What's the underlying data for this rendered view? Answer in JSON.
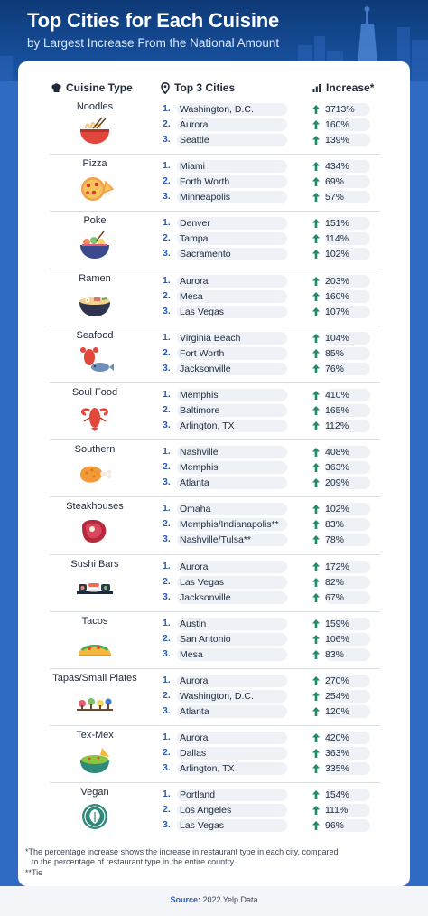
{
  "title": "Top Cities for Each Cuisine",
  "subtitle": "by Largest Increase From the National Amount",
  "columns": {
    "cuisine": "Cuisine Type",
    "cities": "Top 3 Cities",
    "increase": "Increase*"
  },
  "colors": {
    "navy": "#0e3a77",
    "blue": "#2a5bb5",
    "teal_arrow": "#1f8a6e",
    "pill": "#eef1f5"
  },
  "groups": [
    {
      "cuisine": "Noodles",
      "icon": "noodle-bowl-icon",
      "rows": [
        {
          "rank": "1.",
          "city": "Washington, D.C.",
          "pct": "3713%"
        },
        {
          "rank": "2.",
          "city": "Aurora",
          "pct": "160%"
        },
        {
          "rank": "3.",
          "city": "Seattle",
          "pct": "139%"
        }
      ]
    },
    {
      "cuisine": "Pizza",
      "icon": "pizza-icon",
      "rows": [
        {
          "rank": "1.",
          "city": "Miami",
          "pct": "434%"
        },
        {
          "rank": "2.",
          "city": "Forth Worth",
          "pct": "69%"
        },
        {
          "rank": "3.",
          "city": "Minneapolis",
          "pct": "57%"
        }
      ]
    },
    {
      "cuisine": "Poke",
      "icon": "poke-bowl-icon",
      "rows": [
        {
          "rank": "1.",
          "city": "Denver",
          "pct": "151%"
        },
        {
          "rank": "2.",
          "city": "Tampa",
          "pct": "114%"
        },
        {
          "rank": "3.",
          "city": "Sacramento",
          "pct": "102%"
        }
      ]
    },
    {
      "cuisine": "Ramen",
      "icon": "ramen-bowl-icon",
      "rows": [
        {
          "rank": "1.",
          "city": "Aurora",
          "pct": "203%"
        },
        {
          "rank": "2.",
          "city": "Mesa",
          "pct": "160%"
        },
        {
          "rank": "3.",
          "city": "Las Vegas",
          "pct": "107%"
        }
      ]
    },
    {
      "cuisine": "Seafood",
      "icon": "lobster-fish-icon",
      "rows": [
        {
          "rank": "1.",
          "city": "Virginia Beach",
          "pct": "104%"
        },
        {
          "rank": "2.",
          "city": "Fort Worth",
          "pct": "85%"
        },
        {
          "rank": "3.",
          "city": "Jacksonville",
          "pct": "76%"
        }
      ]
    },
    {
      "cuisine": "Soul Food",
      "icon": "crawfish-icon",
      "rows": [
        {
          "rank": "1.",
          "city": "Memphis",
          "pct": "410%"
        },
        {
          "rank": "2.",
          "city": "Baltimore",
          "pct": "165%"
        },
        {
          "rank": "3.",
          "city": "Arlington, TX",
          "pct": "112%"
        }
      ]
    },
    {
      "cuisine": "Southern",
      "icon": "fried-chicken-icon",
      "rows": [
        {
          "rank": "1.",
          "city": "Nashville",
          "pct": "408%"
        },
        {
          "rank": "2.",
          "city": "Memphis",
          "pct": "363%"
        },
        {
          "rank": "3.",
          "city": "Atlanta",
          "pct": "209%"
        }
      ]
    },
    {
      "cuisine": "Steakhouses",
      "icon": "steak-icon",
      "rows": [
        {
          "rank": "1.",
          "city": "Omaha",
          "pct": "102%"
        },
        {
          "rank": "2.",
          "city": "Memphis/Indianapolis**",
          "pct": "83%"
        },
        {
          "rank": "3.",
          "city": "Nashville/Tulsa**",
          "pct": "78%"
        }
      ]
    },
    {
      "cuisine": "Sushi Bars",
      "icon": "sushi-icon",
      "rows": [
        {
          "rank": "1.",
          "city": "Aurora",
          "pct": "172%"
        },
        {
          "rank": "2.",
          "city": "Las Vegas",
          "pct": "82%"
        },
        {
          "rank": "3.",
          "city": "Jacksonville",
          "pct": "67%"
        }
      ]
    },
    {
      "cuisine": "Tacos",
      "icon": "taco-icon",
      "rows": [
        {
          "rank": "1.",
          "city": "Austin",
          "pct": "159%"
        },
        {
          "rank": "2.",
          "city": "San Antonio",
          "pct": "106%"
        },
        {
          "rank": "3.",
          "city": "Mesa",
          "pct": "83%"
        }
      ]
    },
    {
      "cuisine": "Tapas/Small Plates",
      "icon": "tapas-icon",
      "rows": [
        {
          "rank": "1.",
          "city": "Aurora",
          "pct": "270%"
        },
        {
          "rank": "2.",
          "city": "Washington, D.C.",
          "pct": "254%"
        },
        {
          "rank": "3.",
          "city": "Atlanta",
          "pct": "120%"
        }
      ]
    },
    {
      "cuisine": "Tex-Mex",
      "icon": "guacamole-icon",
      "rows": [
        {
          "rank": "1.",
          "city": "Aurora",
          "pct": "420%"
        },
        {
          "rank": "2.",
          "city": "Dallas",
          "pct": "363%"
        },
        {
          "rank": "3.",
          "city": "Arlington, TX",
          "pct": "335%"
        }
      ]
    },
    {
      "cuisine": "Vegan",
      "icon": "vegan-leaf-icon",
      "rows": [
        {
          "rank": "1.",
          "city": "Portland",
          "pct": "154%"
        },
        {
          "rank": "2.",
          "city": "Los Angeles",
          "pct": "111%"
        },
        {
          "rank": "3.",
          "city": "Las Vegas",
          "pct": "96%"
        }
      ]
    }
  ],
  "footnotes": {
    "line1": "*The percentage increase shows the increase in restaurant type in each city, compared",
    "line2": "to the percentage of restaurant type in the entire country.",
    "line3": "**Tie"
  },
  "source": {
    "label": "Source:",
    "text": "2022 Yelp Data"
  }
}
